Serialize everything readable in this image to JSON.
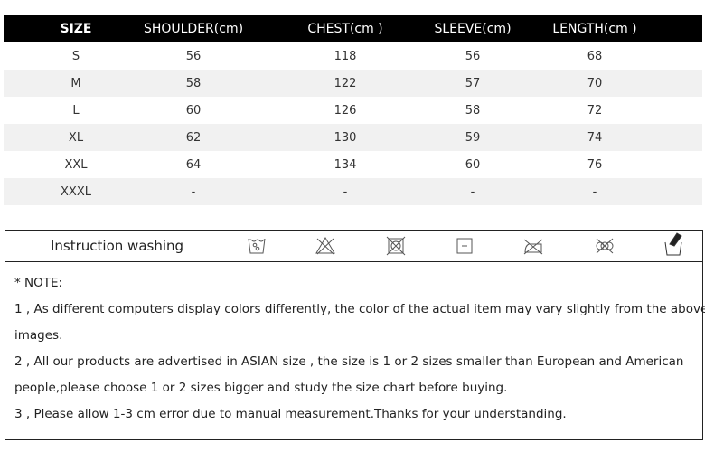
{
  "size_chart": {
    "headers": [
      "SIZE",
      "SHOULDER(cm)",
      "CHEST(cm )",
      "SLEEVE(cm)",
      "LENGTH(cm )"
    ],
    "rows": [
      [
        "S",
        "56",
        "118",
        "56",
        "68"
      ],
      [
        "M",
        "58",
        "122",
        "57",
        "70"
      ],
      [
        "L",
        "60",
        "126",
        "58",
        "72"
      ],
      [
        "XL",
        "62",
        "130",
        "59",
        "74"
      ],
      [
        "XXL",
        "64",
        "134",
        "60",
        "76"
      ],
      [
        "XXXL",
        "-",
        "-",
        "-",
        "-"
      ]
    ]
  },
  "washing": {
    "label": "Instruction washing",
    "icons": [
      "wash-30-icon",
      "do-not-bleach-icon",
      "do-not-tumble-dry-icon",
      "dry-flat-icon",
      "iron-low-icon",
      "do-not-dry-clean-icon",
      "hand-wash-icon"
    ]
  },
  "notes": {
    "title": "* NOTE:",
    "lines": [
      "1 , As different computers display colors differently, the color of the actual item may vary slightly from the above",
      "images.",
      "2 , All our products are advertised in ASIAN size , the size is 1 or 2 sizes smaller than European and American",
      "people,please choose 1 or 2 sizes bigger and study the size chart before buying.",
      "3 , Please allow 1-3 cm error due to manual measurement.Thanks for your understanding."
    ]
  }
}
